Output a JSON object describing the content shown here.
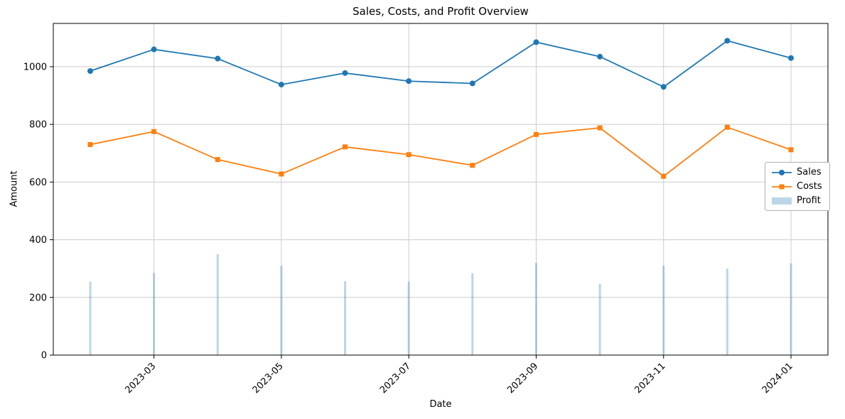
{
  "chart_data": {
    "type": "mixed",
    "title": "Sales, Costs, and Profit Overview",
    "xlabel": "Date",
    "ylabel": "Amount",
    "categories": [
      "2023-02",
      "2023-03",
      "2023-04",
      "2023-05",
      "2023-06",
      "2023-07",
      "2023-08",
      "2023-09",
      "2023-10",
      "2023-11",
      "2023-12",
      "2024-01"
    ],
    "x_tick_labels": [
      "2023-03",
      "2023-05",
      "2023-07",
      "2023-09",
      "2023-11",
      "2024-01"
    ],
    "x_tick_indices": [
      1,
      3,
      5,
      7,
      9,
      11
    ],
    "yticks": [
      0,
      200,
      400,
      600,
      800,
      1000
    ],
    "ylim": [
      0,
      1150
    ],
    "grid": true,
    "grid_color": "#cccccc",
    "legend_position": "center-right",
    "series": [
      {
        "name": "Sales",
        "type": "line",
        "marker": "circle",
        "color": "#1f77b4",
        "values": [
          985,
          1060,
          1028,
          938,
          978,
          950,
          942,
          1085,
          1035,
          930,
          1090,
          1030
        ]
      },
      {
        "name": "Costs",
        "type": "line",
        "marker": "square",
        "color": "#ff7f0e",
        "values": [
          730,
          775,
          678,
          628,
          722,
          695,
          658,
          765,
          788,
          620,
          790,
          712
        ]
      },
      {
        "name": "Profit",
        "type": "bar",
        "color": "rgba(31,119,180,0.3)",
        "values": [
          255,
          285,
          350,
          310,
          256,
          255,
          284,
          320,
          247,
          310,
          300,
          318
        ]
      }
    ]
  }
}
